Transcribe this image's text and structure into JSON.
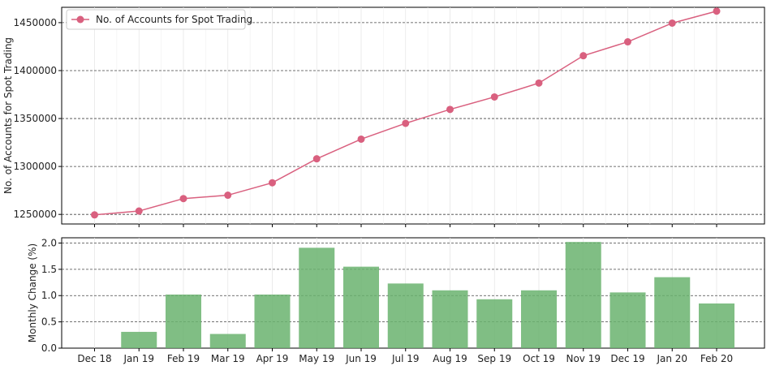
{
  "chart_data": [
    {
      "type": "line",
      "x": [
        "Dec 18",
        "Jan 19",
        "Feb 19",
        "Mar 19",
        "Apr 19",
        "May 19",
        "Jun 19",
        "Jul 19",
        "Aug 19",
        "Sep 19",
        "Oct 19",
        "Nov 19",
        "Dec 19",
        "Jan 20",
        "Feb 20"
      ],
      "series": [
        {
          "name": "No. of Accounts for Spot Trading",
          "values": [
            1249500,
            1253500,
            1266500,
            1270000,
            1283000,
            1308000,
            1328500,
            1345000,
            1359500,
            1372500,
            1387000,
            1415500,
            1430000,
            1449500,
            1462000
          ],
          "color": "#d9607f"
        }
      ],
      "ylabel": "No. of Accounts for Spot Trading",
      "ylim": [
        1240000,
        1466000
      ],
      "yticks": [
        1250000,
        1300000,
        1350000,
        1400000,
        1450000
      ],
      "grid": "horizontal-dashed",
      "legend": "top-left"
    },
    {
      "type": "bar",
      "categories": [
        "Dec 18",
        "Jan 19",
        "Feb 19",
        "Mar 19",
        "Apr 19",
        "May 19",
        "Jun 19",
        "Jul 19",
        "Aug 19",
        "Sep 19",
        "Oct 19",
        "Nov 19",
        "Dec 19",
        "Jan 20",
        "Feb 20"
      ],
      "values": [
        0.0,
        0.31,
        1.02,
        0.27,
        1.02,
        1.91,
        1.55,
        1.23,
        1.1,
        0.93,
        1.1,
        2.02,
        1.06,
        1.35,
        0.85
      ],
      "color": "#6ab36e",
      "ylabel": "Monthly Change (%)",
      "ylim": [
        0,
        2.1
      ],
      "yticks": [
        0.0,
        0.5,
        1.0,
        1.5,
        2.0
      ],
      "grid": "horizontal-dashed"
    }
  ]
}
